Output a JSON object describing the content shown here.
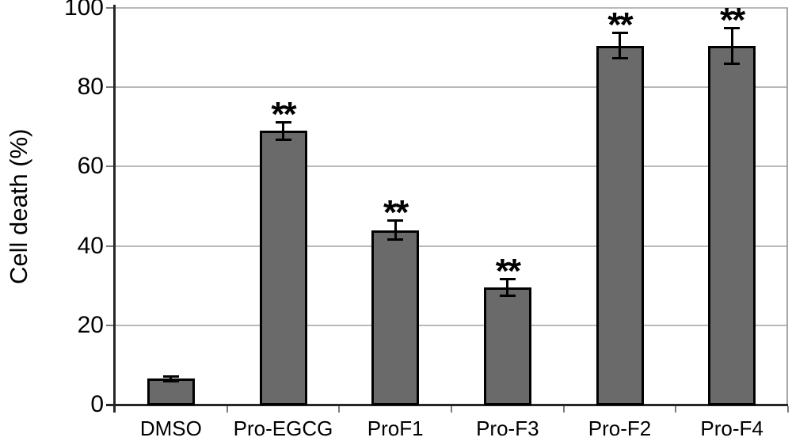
{
  "chart_data": {
    "type": "bar",
    "title": "",
    "xlabel": "",
    "ylabel": "Cell death (%)",
    "ylim": [
      0,
      100
    ],
    "yticks": [
      0,
      20,
      40,
      60,
      80,
      100
    ],
    "grid": true,
    "legend": "none",
    "categories": [
      "DMSO",
      "Pro-EGCG",
      "ProF1",
      "Pro-F3",
      "Pro-F2",
      "Pro-F4"
    ],
    "values": [
      6.5,
      69,
      44,
      29.5,
      90.5,
      90.5
    ],
    "error_bars": [
      0.7,
      2.3,
      2.5,
      2.2,
      3.3,
      4.6
    ],
    "significance": [
      "",
      "**",
      "**",
      "**",
      "**",
      "**"
    ],
    "colors": {
      "bar_fill": "#6a6a6a",
      "bar_border": "#000000",
      "gridline": "#b9b9b9",
      "axis": "#262626",
      "error_bar": "#000000",
      "text": "#000000",
      "background": "#ffffff"
    }
  }
}
